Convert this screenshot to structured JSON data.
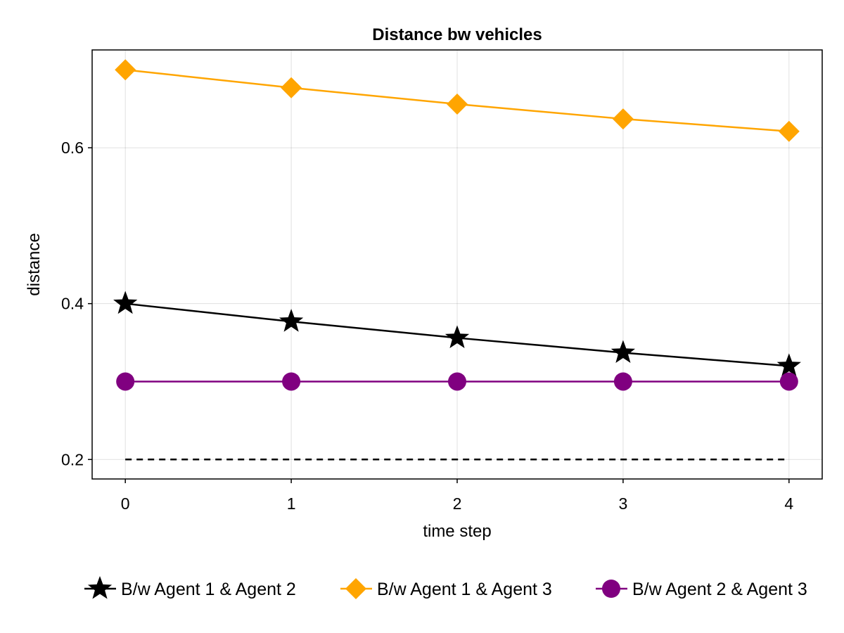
{
  "chart_data": {
    "type": "line",
    "title": "Distance bw vehicles",
    "xlabel": "time step",
    "ylabel": "distance",
    "x": [
      0,
      1,
      2,
      3,
      4
    ],
    "xticks": [
      "0",
      "1",
      "2",
      "3",
      "4"
    ],
    "yticks": [
      0.2,
      0.4,
      0.6
    ],
    "ytick_labels": [
      "0.2",
      "0.4",
      "0.6"
    ],
    "xlim": [
      -0.2,
      4.2
    ],
    "ylim": [
      0.175,
      0.7255
    ],
    "grid": true,
    "legend_position": "bottom",
    "series": [
      {
        "name": "B/w Agent 1 & Agent 2",
        "color": "#000000",
        "marker": "star",
        "values": [
          0.4,
          0.377,
          0.356,
          0.337,
          0.32
        ]
      },
      {
        "name": "B/w Agent 1 & Agent 3",
        "color": "#ffa500",
        "marker": "diamond",
        "values": [
          0.7,
          0.677,
          0.656,
          0.637,
          0.621
        ]
      },
      {
        "name": "B/w Agent 2 & Agent 3",
        "color": "#800080",
        "marker": "circle",
        "values": [
          0.3,
          0.3,
          0.3,
          0.3,
          0.3
        ]
      }
    ],
    "reference_lines": [
      {
        "style": "dashed",
        "color": "#000000",
        "values": [
          0.2,
          0.2,
          0.2,
          0.2,
          0.2
        ]
      }
    ]
  }
}
